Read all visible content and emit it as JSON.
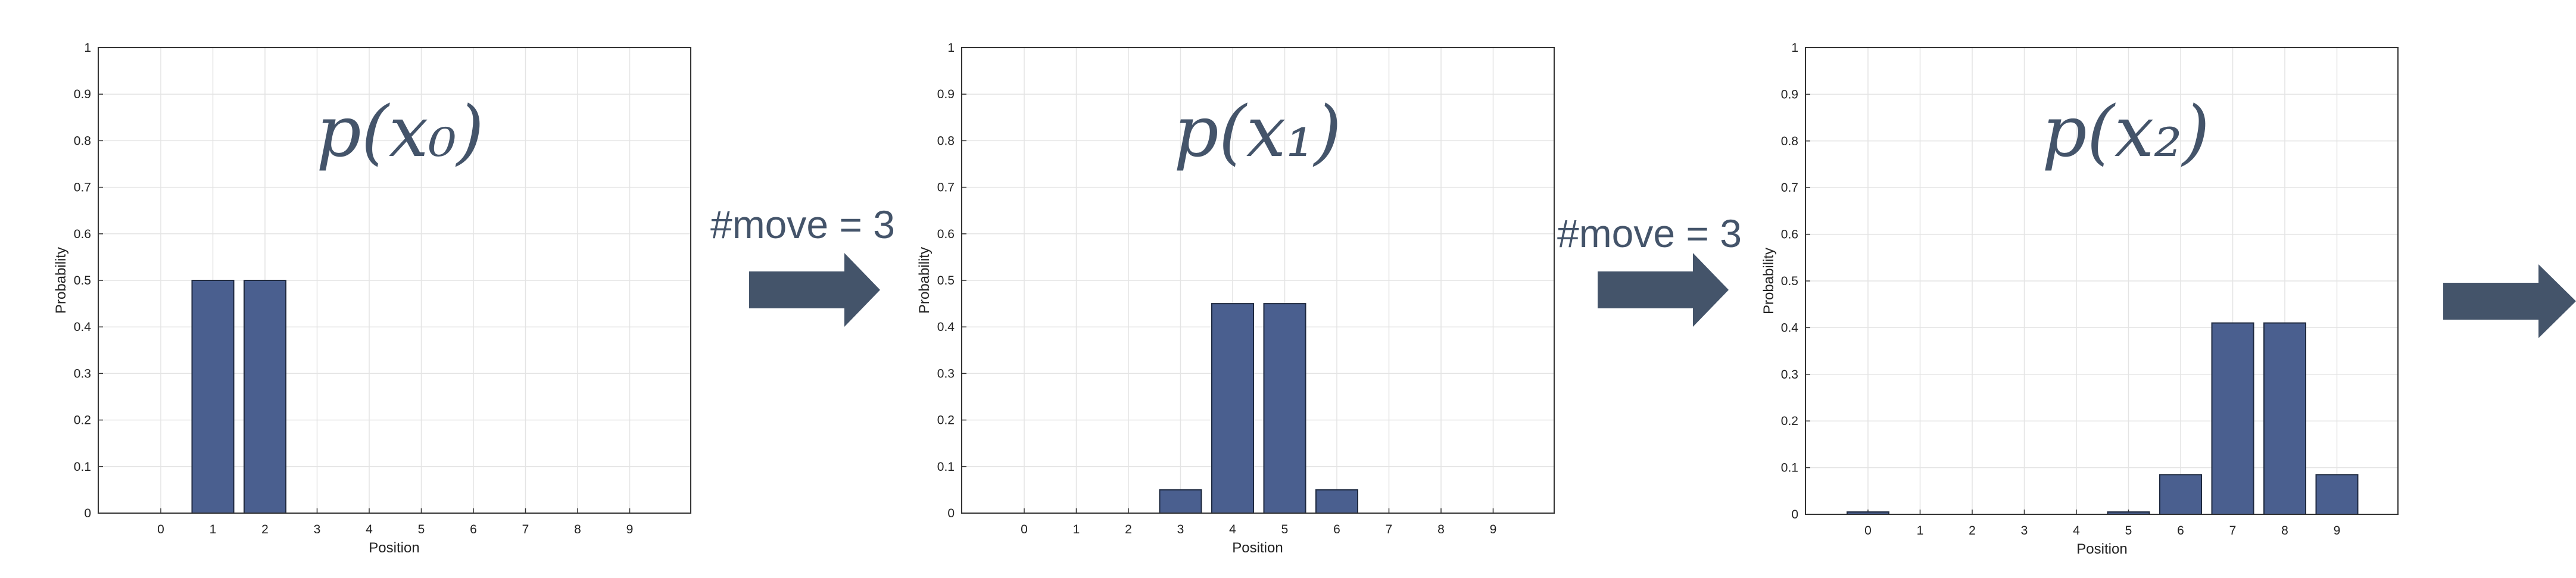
{
  "chart_data": [
    {
      "type": "bar",
      "title": "p(x₀)",
      "xlabel": "Position",
      "ylabel": "Probability",
      "categories": [
        "0",
        "1",
        "2",
        "3",
        "4",
        "5",
        "6",
        "7",
        "8",
        "9"
      ],
      "values": [
        0,
        0.5,
        0.5,
        0,
        0,
        0,
        0,
        0,
        0,
        0
      ],
      "ylim": [
        0,
        1
      ],
      "yticks": [
        "0",
        "0.1",
        "0.2",
        "0.3",
        "0.4",
        "0.5",
        "0.6",
        "0.7",
        "0.8",
        "0.9",
        "1"
      ],
      "grid": true
    },
    {
      "type": "bar",
      "title": "p(x₁)",
      "xlabel": "Position",
      "ylabel": "Probability",
      "categories": [
        "0",
        "1",
        "2",
        "3",
        "4",
        "5",
        "6",
        "7",
        "8",
        "9"
      ],
      "values": [
        0,
        0,
        0,
        0.05,
        0.45,
        0.45,
        0.05,
        0,
        0,
        0
      ],
      "ylim": [
        0,
        1
      ],
      "yticks": [
        "0",
        "0.1",
        "0.2",
        "0.3",
        "0.4",
        "0.5",
        "0.6",
        "0.7",
        "0.8",
        "0.9",
        "1"
      ],
      "grid": true
    },
    {
      "type": "bar",
      "title": "p(x₂)",
      "xlabel": "Position",
      "ylabel": "Probability",
      "categories": [
        "0",
        "1",
        "2",
        "3",
        "4",
        "5",
        "6",
        "7",
        "8",
        "9"
      ],
      "values": [
        0.005,
        0,
        0,
        0,
        0,
        0.005,
        0.085,
        0.41,
        0.41,
        0.085
      ],
      "ylim": [
        0,
        1
      ],
      "yticks": [
        "0",
        "0.1",
        "0.2",
        "0.3",
        "0.4",
        "0.5",
        "0.6",
        "0.7",
        "0.8",
        "0.9",
        "1"
      ],
      "grid": true
    }
  ],
  "arrows": [
    {
      "label": "#move = 3"
    },
    {
      "label": "#move = 3"
    },
    {
      "label": ""
    }
  ],
  "colors": {
    "bar_fill": "#4a5f8f",
    "bar_stroke": "#1f2a40",
    "arrow": "#44546a",
    "grid": "#e4e4e4",
    "axis": "#333333"
  }
}
